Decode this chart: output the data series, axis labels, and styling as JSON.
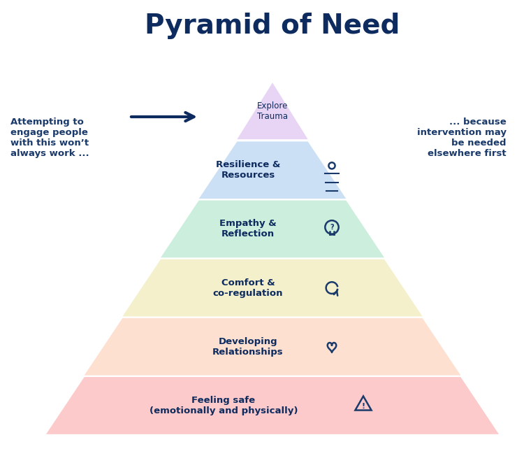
{
  "title": "Pyramid of Need",
  "title_color": "#0d2b5e",
  "background_color": "#ffffff",
  "left_text": "Attempting to\nengage people\nwith this won’t\nalways work ...",
  "right_text": "... because\nintervention may\nbe needed\nelsewhere first",
  "side_text_color": "#1a3a6b",
  "layer_labels": [
    "Explore\nTrauma",
    "Resilience &\nResources",
    "Empathy &\nReflection",
    "Comfort &\nco-regulation",
    "Developing\nRelationships",
    "Feeling safe\n(emotionally and physically)"
  ],
  "layer_colors": [
    "#e8d5f5",
    "#cce0f5",
    "#cceedd",
    "#f5f0cc",
    "#fde0d0",
    "#fccaca"
  ],
  "layer_bold": [
    false,
    true,
    true,
    true,
    true,
    true
  ],
  "layer_fontsizes": [
    8.5,
    9.5,
    9.5,
    9.5,
    9.5,
    9.5
  ],
  "text_color": "#0d2b5e",
  "arrow_color": "#0d2b5e",
  "icon_color": "#1a3a6b"
}
